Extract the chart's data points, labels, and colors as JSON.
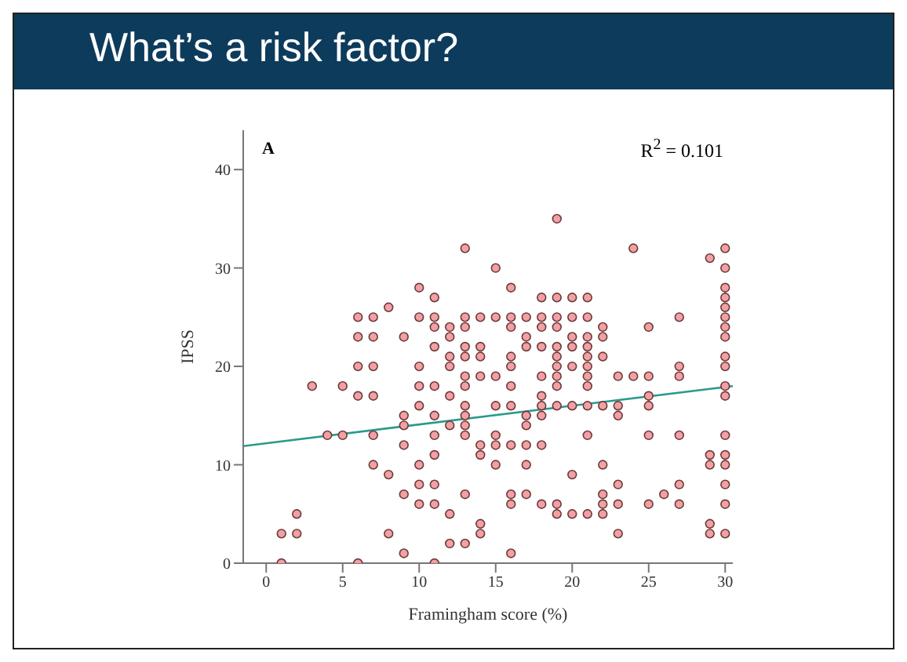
{
  "chart_data": {
    "type": "scatter",
    "title": "What’s a risk factor?",
    "xlabel": "Framingham score (%)",
    "ylabel": "IPSS",
    "annotations": [
      "A",
      "R$^{2}$ = 0.101"
    ],
    "xlim": [
      -1.5,
      30.5
    ],
    "xticks": [
      0,
      5,
      10,
      15,
      20,
      25,
      30
    ],
    "ylim": [
      0,
      44
    ],
    "yticks": [
      0,
      10,
      20,
      30,
      40
    ],
    "grid": false,
    "marker": "circle",
    "series": [
      {
        "color": "#f2a0a4",
        "x": [
          1,
          1,
          2,
          2,
          3,
          4,
          5,
          5,
          6,
          6,
          6,
          6,
          6,
          7,
          7,
          7,
          7,
          7,
          7,
          8,
          8,
          8,
          9,
          9,
          9,
          9,
          9,
          9,
          10,
          10,
          10,
          10,
          10,
          10,
          10,
          10,
          11,
          11,
          11,
          11,
          11,
          11,
          11,
          11,
          11,
          11,
          11,
          12,
          12,
          12,
          12,
          12,
          12,
          12,
          12,
          13,
          13,
          13,
          13,
          13,
          13,
          13,
          13,
          13,
          13,
          13,
          13,
          13,
          14,
          14,
          14,
          14,
          14,
          14,
          14,
          14,
          15,
          15,
          15,
          15,
          15,
          15,
          15,
          16,
          16,
          16,
          16,
          16,
          16,
          16,
          16,
          16,
          16,
          16,
          17,
          17,
          17,
          17,
          17,
          17,
          17,
          17,
          18,
          18,
          18,
          18,
          18,
          18,
          18,
          18,
          18,
          18,
          19,
          19,
          19,
          19,
          19,
          19,
          19,
          19,
          19,
          19,
          19,
          19,
          20,
          20,
          20,
          20,
          20,
          20,
          20,
          20,
          21,
          21,
          21,
          21,
          21,
          21,
          21,
          21,
          21,
          21,
          21,
          22,
          22,
          22,
          22,
          22,
          22,
          22,
          22,
          23,
          23,
          23,
          23,
          23,
          23,
          24,
          24,
          25,
          25,
          25,
          25,
          25,
          25,
          26,
          27,
          27,
          27,
          27,
          27,
          27,
          29,
          29,
          29,
          29,
          29,
          30,
          30,
          30,
          30,
          30,
          30,
          30,
          30,
          30,
          30,
          30,
          30,
          30,
          30,
          30,
          30,
          30,
          30
        ],
        "values": [
          3,
          0,
          5,
          3,
          18,
          13,
          18,
          13,
          25,
          23,
          20,
          17,
          0,
          25,
          23,
          20,
          17,
          13,
          10,
          26,
          9,
          3,
          23,
          15,
          14,
          12,
          7,
          1,
          28,
          25,
          20,
          18,
          16,
          10,
          8,
          6,
          27,
          25,
          24,
          22,
          18,
          15,
          13,
          11,
          8,
          6,
          0,
          24,
          23,
          21,
          20,
          17,
          14,
          5,
          2,
          32,
          25,
          24,
          22,
          21,
          19,
          18,
          16,
          15,
          14,
          13,
          7,
          2,
          25,
          22,
          21,
          19,
          12,
          11,
          4,
          3,
          30,
          25,
          19,
          16,
          13,
          12,
          10,
          28,
          25,
          24,
          21,
          20,
          18,
          16,
          12,
          7,
          6,
          1,
          25,
          23,
          22,
          15,
          14,
          12,
          10,
          7,
          27,
          25,
          24,
          22,
          19,
          17,
          16,
          15,
          12,
          6,
          35,
          27,
          25,
          24,
          22,
          21,
          20,
          19,
          18,
          16,
          6,
          5,
          27,
          25,
          23,
          22,
          20,
          16,
          9,
          5,
          27,
          25,
          23,
          22,
          21,
          20,
          19,
          18,
          16,
          13,
          5,
          24,
          23,
          21,
          16,
          10,
          7,
          6,
          5,
          19,
          16,
          15,
          8,
          6,
          3,
          32,
          19,
          24,
          19,
          17,
          16,
          13,
          6,
          7,
          25,
          20,
          19,
          13,
          8,
          6,
          31,
          11,
          10,
          4,
          3,
          32,
          30,
          28,
          27,
          26,
          25,
          24,
          23,
          21,
          20,
          18,
          17,
          13,
          11,
          10,
          8,
          6,
          3
        ]
      },
      {
        "type": "line",
        "marker": "none",
        "color": "#2a9a8a",
        "x": [
          -1.5,
          30.5
        ],
        "values": [
          11.9,
          18
        ]
      }
    ]
  }
}
